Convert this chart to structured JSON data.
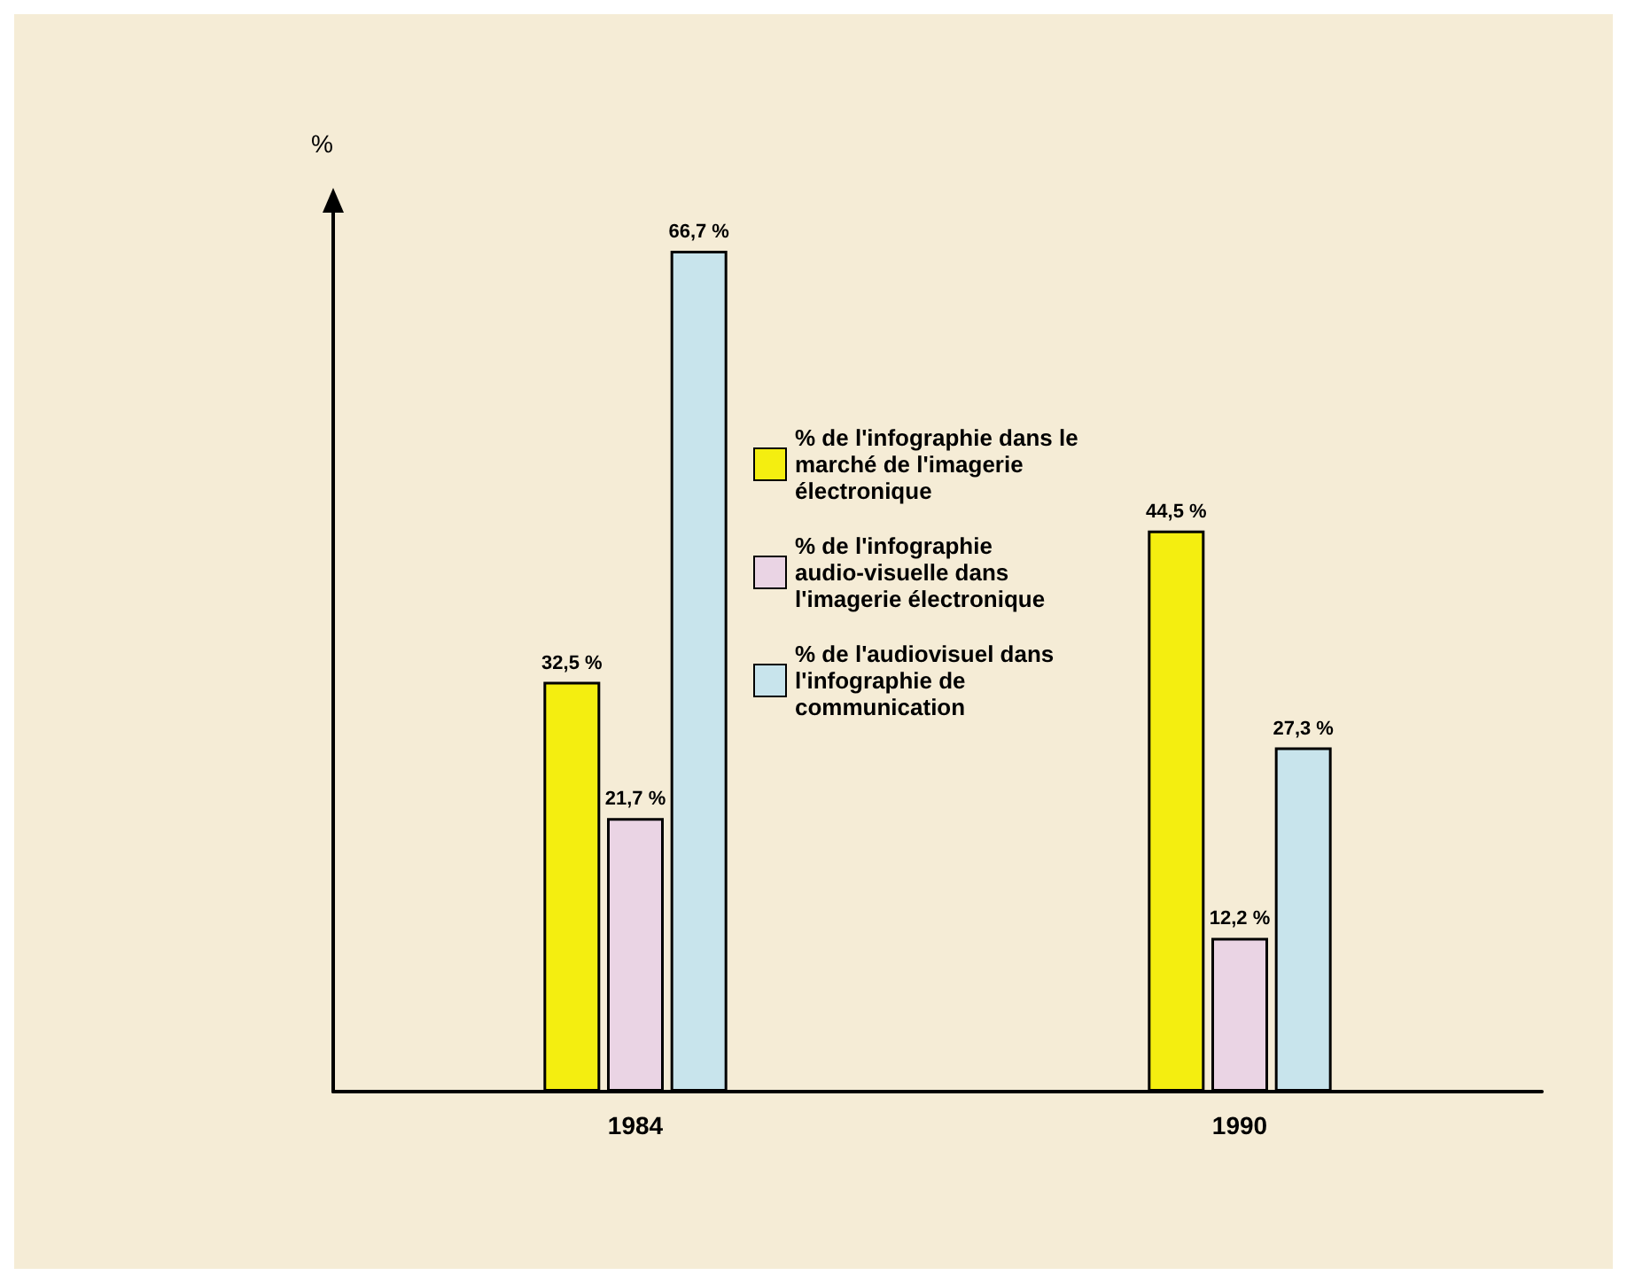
{
  "chart_data": {
    "type": "bar",
    "ylabel": "%",
    "categories": [
      "1984",
      "1990"
    ],
    "legend": "center",
    "series": [
      {
        "name": "% de l'infographie dans le marché de l'imagerie électronique",
        "color": "#f4ee10",
        "values": [
          32.5,
          44.5
        ],
        "value_labels": [
          "32,5 %",
          "44,5 %"
        ]
      },
      {
        "name": "% de l'infographie audio-visuelle dans l'imagerie électronique",
        "color": "#ead4e4",
        "values": [
          21.7,
          12.2
        ],
        "value_labels": [
          "21,7 %",
          "12,2 %"
        ]
      },
      {
        "name": "% de l'audiovisuel dans l'infographie de communication",
        "color": "#c8e4ec",
        "values": [
          66.7,
          27.3
        ],
        "value_labels": [
          "66,7 %",
          "27,3 %"
        ]
      }
    ]
  }
}
